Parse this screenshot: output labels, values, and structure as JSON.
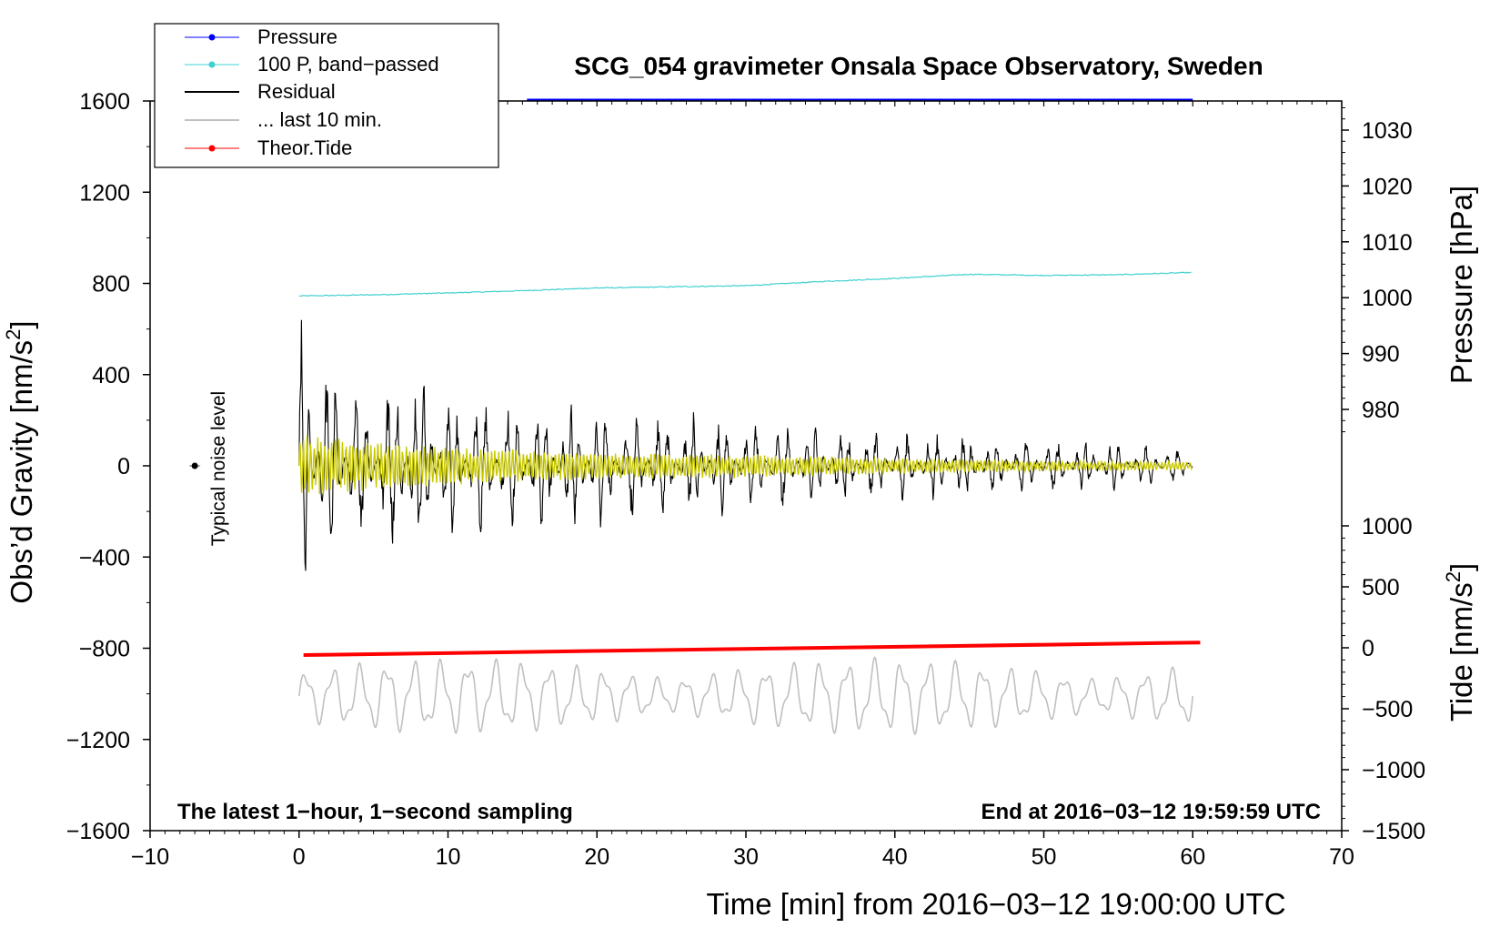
{
  "chart_data": {
    "type": "line",
    "title": "SCG_054 gravimeter Onsala Space Observatory, Sweden",
    "xlabel": "Time [min] from 2016−03−12 19:00:00 UTC",
    "ylabel_left": "Obs’d Gravity [nm/s",
    "ylabel_left_sup": "2",
    "ylabel_left_close": "]",
    "ylabel_right_pressure": "Pressure [hPa]",
    "ylabel_right_tide": "Tide [nm/s",
    "ylabel_right_tide_sup": "2",
    "ylabel_right_tide_close": "]",
    "xlim": [
      -10,
      70
    ],
    "ylim_left": [
      -1600,
      1600
    ],
    "pressure_range": [
      975,
      1035
    ],
    "tide_range": [
      -1500,
      1000
    ],
    "x_ticks": [
      -10,
      0,
      10,
      20,
      30,
      40,
      50,
      60,
      70
    ],
    "x_tick_labels": [
      "−10",
      "0",
      "10",
      "20",
      "30",
      "40",
      "50",
      "60",
      "70"
    ],
    "left_ticks": [
      -1600,
      -1200,
      -800,
      -400,
      0,
      400,
      800,
      1200,
      1600
    ],
    "left_tick_labels": [
      "−1600",
      "−1200",
      "−800",
      "−400",
      "0",
      "400",
      "800",
      "1200",
      "1600"
    ],
    "pressure_ticks": [
      980,
      990,
      1000,
      1010,
      1020,
      1030
    ],
    "pressure_tick_labels": [
      "980",
      "990",
      "1000",
      "1010",
      "1020",
      "1030"
    ],
    "tide_ticks": [
      -1500,
      -1000,
      -500,
      0,
      500,
      1000
    ],
    "tide_tick_labels": [
      "−1500",
      "−1000",
      "−500",
      "0",
      "500",
      "1000"
    ],
    "legend": [
      {
        "label": "Pressure",
        "color": "#0000ff",
        "marker": true
      },
      {
        "label": "100 P, band−passed",
        "color": "#40d0d0",
        "marker": true
      },
      {
        "label": "Residual",
        "color": "#000000",
        "marker": false
      },
      {
        "label": "... last 10 min.",
        "color": "#c0c0c0",
        "marker": false
      },
      {
        "label": "Theor.Tide",
        "color": "#ff0000",
        "marker": true
      }
    ],
    "annotations": {
      "noise_label": "Typical noise level",
      "bottom_left": "The latest 1−hour, 1−second sampling",
      "bottom_right": "End at 2016−03−12 19:59:59 UTC"
    },
    "colors": {
      "pressure": "#0000ff",
      "bandpassed": "#40d0d0",
      "residual": "#000000",
      "last10": "#c0c0c0",
      "tide": "#ff0000",
      "yellow": "#c8c800"
    },
    "series": [
      {
        "name": "Pressure",
        "x_range": [
          15.3,
          60
        ],
        "value_hPa": 1034.5,
        "note": "runs along the top edge, mostly clipped"
      },
      {
        "name": "100 P, band−passed",
        "x": [
          0,
          5,
          10,
          15,
          20,
          25,
          30,
          35,
          40,
          45,
          50,
          55,
          60
        ],
        "y": [
          745,
          750,
          758,
          768,
          780,
          785,
          790,
          808,
          822,
          840,
          835,
          838,
          848
        ]
      },
      {
        "name": "Residual",
        "x_range": [
          0,
          60
        ],
        "envelope_x": [
          0,
          2,
          5,
          7,
          10,
          15,
          20,
          25,
          30,
          35,
          40,
          45,
          50,
          55,
          60
        ],
        "envelope_y": [
          700,
          520,
          330,
          560,
          360,
          320,
          300,
          260,
          220,
          200,
          170,
          160,
          130,
          120,
          90
        ]
      },
      {
        "name": "Band−passed residual",
        "x_range": [
          0,
          60
        ],
        "envelope_x": [
          0,
          10,
          20,
          30,
          40,
          50,
          60
        ],
        "envelope_y": [
          140,
          85,
          60,
          55,
          35,
          25,
          20
        ]
      },
      {
        "name": "... last 10 min.",
        "x_range": [
          0,
          60
        ],
        "center": -1010,
        "amplitude_max": 170
      },
      {
        "name": "Theor.Tide",
        "x": [
          0.3,
          60.5
        ],
        "y": [
          -830,
          -775
        ]
      }
    ],
    "noise_point": {
      "x": -7,
      "y": 0
    }
  }
}
